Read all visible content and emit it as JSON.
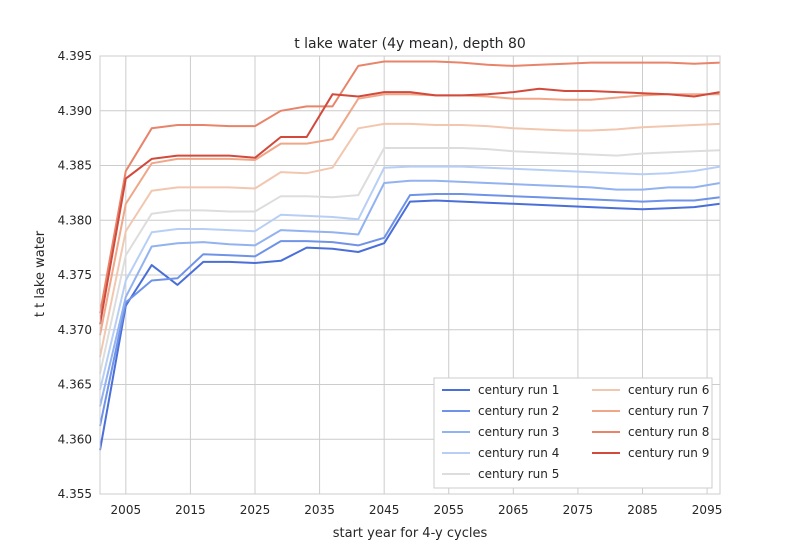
{
  "chart_data": {
    "type": "line",
    "title": "t lake water (4y mean), depth 80",
    "xlabel": "start year for 4-y cycles",
    "ylabel": "t t lake water",
    "xlim": [
      2001,
      2097
    ],
    "ylim": [
      4.355,
      4.395
    ],
    "xticks": [
      2005,
      2015,
      2025,
      2035,
      2045,
      2055,
      2065,
      2075,
      2085,
      2095
    ],
    "yticks": [
      4.355,
      4.36,
      4.365,
      4.37,
      4.375,
      4.38,
      4.385,
      4.39,
      4.395
    ],
    "ytick_labels": [
      "4.355",
      "4.360",
      "4.365",
      "4.370",
      "4.375",
      "4.380",
      "4.385",
      "4.390",
      "4.395"
    ],
    "grid": true,
    "legend_position": "lower-right",
    "legend_columns": 2,
    "x": [
      2001,
      2005,
      2009,
      2013,
      2017,
      2021,
      2025,
      2029,
      2033,
      2037,
      2041,
      2045,
      2049,
      2053,
      2057,
      2061,
      2065,
      2069,
      2073,
      2077,
      2081,
      2085,
      2089,
      2093,
      2097
    ],
    "series": [
      {
        "name": "century run 1",
        "color": "#4a6fd8",
        "values": [
          4.359,
          4.3722,
          4.3759,
          4.3741,
          4.3762,
          4.3762,
          4.3761,
          4.3763,
          4.3775,
          4.3774,
          4.3771,
          4.3779,
          4.3817,
          4.3818,
          4.3817,
          4.3816,
          4.3815,
          4.3814,
          4.3813,
          4.3812,
          4.3811,
          4.381,
          4.3811,
          4.3812,
          4.3815
        ]
      },
      {
        "name": "century run 2",
        "color": "#6f93e8",
        "values": [
          4.3612,
          4.3725,
          4.3745,
          4.3747,
          4.3769,
          4.3768,
          4.3767,
          4.3781,
          4.3781,
          4.378,
          4.3777,
          4.3784,
          4.3823,
          4.3824,
          4.3824,
          4.3823,
          4.3822,
          4.3821,
          4.382,
          4.3819,
          4.3818,
          4.3817,
          4.3818,
          4.3818,
          4.3821
        ]
      },
      {
        "name": "century run 3",
        "color": "#93b2f0",
        "values": [
          4.363,
          4.373,
          4.3776,
          4.3779,
          4.378,
          4.3778,
          4.3777,
          4.3791,
          4.379,
          4.3789,
          4.3787,
          4.3834,
          4.3836,
          4.3836,
          4.3835,
          4.3834,
          4.3833,
          4.3832,
          4.3831,
          4.383,
          4.3828,
          4.3828,
          4.383,
          4.383,
          4.3834
        ]
      },
      {
        "name": "century run 4",
        "color": "#b8cff5",
        "values": [
          4.3645,
          4.3745,
          4.3789,
          4.3792,
          4.3792,
          4.3791,
          4.379,
          4.3805,
          4.3804,
          4.3803,
          4.3801,
          4.3848,
          4.3849,
          4.3849,
          4.3849,
          4.3848,
          4.3847,
          4.3846,
          4.3845,
          4.3844,
          4.3843,
          4.3842,
          4.3843,
          4.3845,
          4.3849
        ]
      },
      {
        "name": "century run 5",
        "color": "#dddddd",
        "values": [
          4.366,
          4.3768,
          4.3806,
          4.3809,
          4.3809,
          4.3808,
          4.3808,
          4.3822,
          4.3822,
          4.3821,
          4.3823,
          4.3866,
          4.3866,
          4.3866,
          4.3866,
          4.3865,
          4.3863,
          4.3862,
          4.3861,
          4.386,
          4.3859,
          4.3861,
          4.3862,
          4.3863,
          4.3864
        ]
      },
      {
        "name": "century run 6",
        "color": "#f2c7b0",
        "values": [
          4.3675,
          4.379,
          4.3827,
          4.383,
          4.383,
          4.383,
          4.3829,
          4.3844,
          4.3843,
          4.3848,
          4.3884,
          4.3888,
          4.3888,
          4.3887,
          4.3887,
          4.3886,
          4.3884,
          4.3883,
          4.3882,
          4.3882,
          4.3883,
          4.3885,
          4.3886,
          4.3887,
          4.3888
        ]
      },
      {
        "name": "century run 7",
        "color": "#f0a688",
        "values": [
          4.3695,
          4.3815,
          4.3852,
          4.3856,
          4.3856,
          4.3856,
          4.3855,
          4.387,
          4.387,
          4.3874,
          4.3911,
          4.3915,
          4.3915,
          4.3914,
          4.3914,
          4.3913,
          4.3911,
          4.3911,
          4.391,
          4.391,
          4.3912,
          4.3914,
          4.3915,
          4.3915,
          4.3915
        ]
      },
      {
        "name": "century run 8",
        "color": "#e8846a",
        "values": [
          4.3715,
          4.3845,
          4.3884,
          4.3887,
          4.3887,
          4.3886,
          4.3886,
          4.39,
          4.3904,
          4.3904,
          4.3941,
          4.3945,
          4.3945,
          4.3945,
          4.3944,
          4.3942,
          4.3941,
          4.3942,
          4.3943,
          4.3944,
          4.3944,
          4.3944,
          4.3944,
          4.3943,
          4.3944
        ]
      },
      {
        "name": "century run 9",
        "color": "#d14a3c",
        "values": [
          4.3705,
          4.3838,
          4.3856,
          4.3859,
          4.3859,
          4.3859,
          4.3857,
          4.3876,
          4.3876,
          4.3915,
          4.3913,
          4.3917,
          4.3917,
          4.3914,
          4.3914,
          4.3915,
          4.3917,
          4.392,
          4.3918,
          4.3918,
          4.3917,
          4.3916,
          4.3915,
          4.3913,
          4.3917
        ]
      }
    ]
  }
}
